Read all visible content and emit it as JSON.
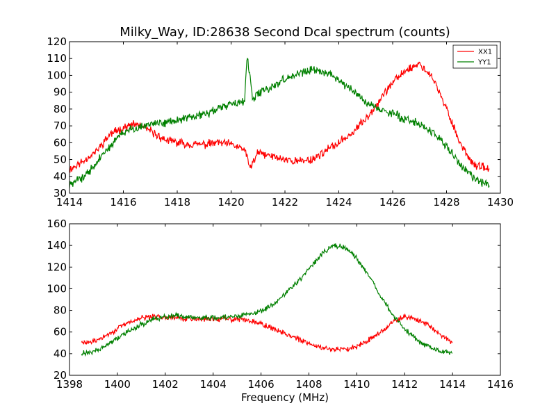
{
  "chart_data": [
    {
      "type": "line",
      "title": "Milky_Way, ID:28638 Second Dcal spectrum (counts)",
      "xlabel": "",
      "ylabel": "",
      "xlim": [
        1414,
        1430
      ],
      "ylim": [
        30,
        120
      ],
      "xticks": [
        "1414",
        "1416",
        "1418",
        "1420",
        "1422",
        "1424",
        "1426",
        "1428",
        "1430"
      ],
      "yticks": [
        "30",
        "40",
        "50",
        "60",
        "70",
        "80",
        "90",
        "100",
        "110",
        "120"
      ],
      "legend": {
        "placement": "top-right",
        "entries": [
          "XX1",
          "YY1"
        ]
      },
      "grid": false,
      "series": [
        {
          "name": "XX1",
          "color": "#ff0000",
          "x": [
            1414.0,
            1414.5,
            1415.0,
            1415.5,
            1416.0,
            1416.5,
            1417.0,
            1417.5,
            1418.0,
            1418.5,
            1419.0,
            1419.5,
            1420.0,
            1420.5,
            1420.7,
            1421.0,
            1421.5,
            1422.0,
            1422.5,
            1423.0,
            1423.5,
            1424.0,
            1424.5,
            1425.0,
            1425.5,
            1426.0,
            1426.5,
            1427.0,
            1427.5,
            1428.0,
            1428.5,
            1429.0,
            1429.6
          ],
          "y": [
            44,
            49,
            55,
            65,
            69,
            71,
            67,
            62,
            60,
            59,
            59,
            60,
            59,
            56,
            45,
            54,
            52,
            50,
            49,
            50,
            55,
            60,
            66,
            74,
            85,
            96,
            103,
            107,
            98,
            80,
            60,
            47,
            44
          ],
          "noise": 2.5
        },
        {
          "name": "YY1",
          "color": "#008000",
          "x": [
            1414.0,
            1414.5,
            1415.0,
            1415.5,
            1416.0,
            1416.5,
            1417.0,
            1417.5,
            1418.0,
            1418.5,
            1419.0,
            1419.5,
            1420.0,
            1420.5,
            1420.6,
            1420.8,
            1421.0,
            1421.5,
            1422.0,
            1422.5,
            1423.0,
            1423.5,
            1424.0,
            1424.5,
            1425.0,
            1425.5,
            1426.0,
            1426.5,
            1427.0,
            1427.5,
            1428.0,
            1428.5,
            1429.0,
            1429.6
          ],
          "y": [
            35,
            39,
            48,
            58,
            66,
            69,
            71,
            72,
            73,
            75,
            77,
            80,
            83,
            85,
            112,
            85,
            89,
            93,
            98,
            101,
            103,
            102,
            97,
            91,
            84,
            80,
            77,
            74,
            71,
            66,
            58,
            47,
            39,
            34
          ],
          "noise": 2.5
        }
      ]
    },
    {
      "type": "line",
      "title": "",
      "xlabel": "Frequency (MHz)",
      "ylabel": "",
      "xlim": [
        1398,
        1416
      ],
      "ylim": [
        20,
        160
      ],
      "xticks": [
        "1398",
        "1400",
        "1402",
        "1404",
        "1406",
        "1408",
        "1410",
        "1412",
        "1414",
        "1416"
      ],
      "yticks": [
        "20",
        "40",
        "60",
        "80",
        "100",
        "120",
        "140",
        "160"
      ],
      "grid": false,
      "series": [
        {
          "name": "XX1",
          "color": "#ff0000",
          "x": [
            1398.5,
            1399.0,
            1399.5,
            1400.0,
            1400.5,
            1401.0,
            1401.5,
            1402.0,
            1402.5,
            1403.0,
            1403.5,
            1404.0,
            1404.5,
            1405.0,
            1405.5,
            1406.0,
            1406.5,
            1407.0,
            1407.5,
            1408.0,
            1408.5,
            1409.0,
            1409.5,
            1410.0,
            1410.5,
            1411.0,
            1411.5,
            1412.0,
            1412.5,
            1413.0,
            1413.5,
            1414.0
          ],
          "y": [
            50,
            51,
            56,
            63,
            69,
            73,
            74,
            74,
            73,
            72,
            72,
            72,
            72,
            72,
            71,
            68,
            63,
            59,
            54,
            49,
            46,
            44,
            44,
            47,
            53,
            60,
            69,
            74,
            72,
            66,
            57,
            50
          ],
          "noise": 2.5
        },
        {
          "name": "YY1",
          "color": "#008000",
          "x": [
            1398.5,
            1399.0,
            1399.5,
            1400.0,
            1400.5,
            1401.0,
            1401.5,
            1402.0,
            1402.5,
            1403.0,
            1403.5,
            1404.0,
            1404.5,
            1405.0,
            1405.5,
            1406.0,
            1406.5,
            1407.0,
            1407.5,
            1408.0,
            1408.5,
            1409.0,
            1409.5,
            1410.0,
            1410.5,
            1411.0,
            1411.5,
            1412.0,
            1412.5,
            1413.0,
            1413.5,
            1414.0
          ],
          "y": [
            40,
            42,
            47,
            54,
            61,
            67,
            72,
            74,
            75,
            74,
            73,
            73,
            74,
            75,
            76,
            79,
            85,
            95,
            106,
            118,
            131,
            140,
            138,
            128,
            112,
            93,
            76,
            63,
            53,
            46,
            42,
            40
          ],
          "noise": 2.5
        }
      ]
    }
  ]
}
